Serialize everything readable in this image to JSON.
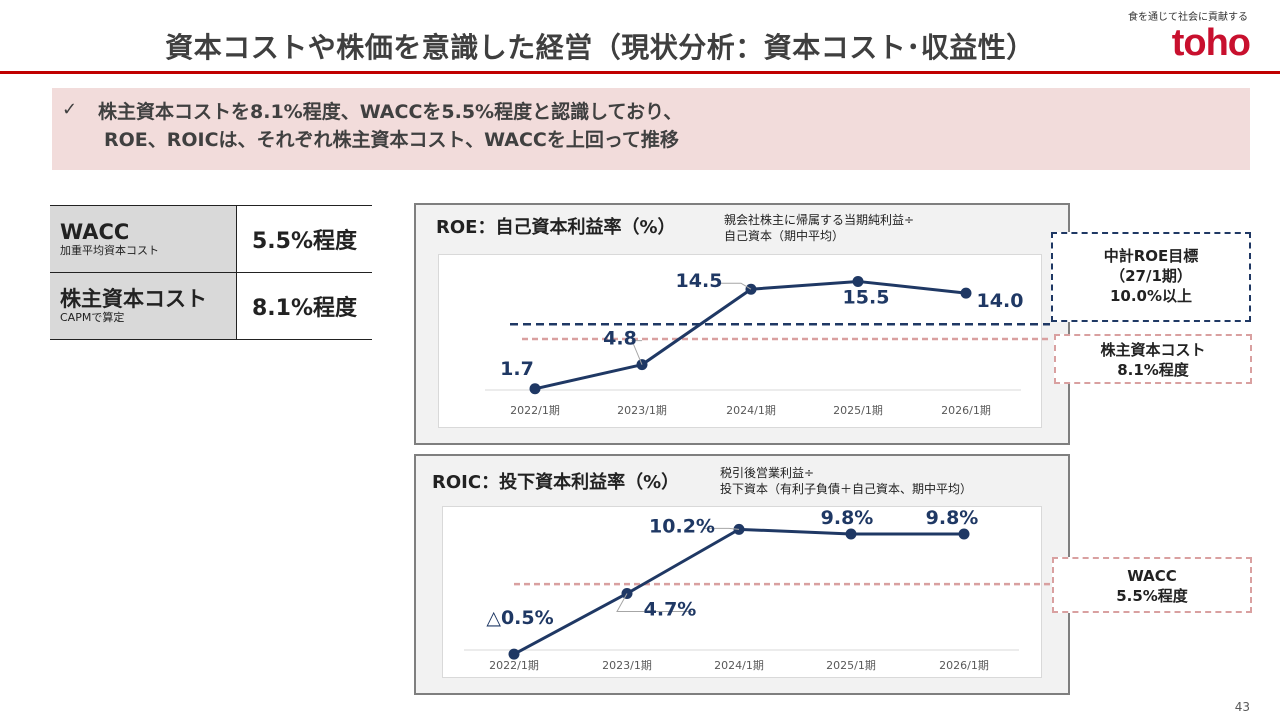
{
  "header": {
    "title": "資本コストや株価を意識した経営（現状分析：資本コスト･収益性）",
    "tagline": "食を通じて社会に貢献する",
    "logo": "toho"
  },
  "banner": {
    "check": "✓",
    "line1": "株主資本コストを8.1%程度、WACCを5.5%程度と認識しており、",
    "line2": "ROE、ROICは、それぞれ株主資本コスト、WACCを上回って推移"
  },
  "cost_table": {
    "rows": [
      {
        "label": "WACC",
        "sublabel": "加重平均資本コスト",
        "value": "5.5%程度"
      },
      {
        "label": "株主資本コスト",
        "sublabel": "CAPMで算定",
        "value": "8.1%程度"
      }
    ]
  },
  "roe_panel": {
    "title": "ROE：自己資本利益率（%）",
    "definition_line1": "親会社株主に帰属する当期純利益÷",
    "definition_line2": "自己資本（期中平均）",
    "callout_target": {
      "line1": "中計ROE目標",
      "line2": "（27/1期）",
      "line3": "10.0%以上"
    },
    "callout_cost": {
      "line1": "株主資本コスト",
      "line2": "8.1%程度"
    }
  },
  "roic_panel": {
    "title": "ROIC：投下資本利益率（%）",
    "definition_line1": "税引後営業利益÷",
    "definition_line2": "投下資本（有利子負債＋自己資本、期中平均）",
    "callout_wacc": {
      "line1": "WACC",
      "line2": "5.5%程度"
    }
  },
  "colors": {
    "accent": "#c00000",
    "series": "#1f3864",
    "banner": "#f2dcdb",
    "cost_line": "#d9a0a0"
  },
  "page_number": "43",
  "chart_data": [
    {
      "type": "line",
      "title": "ROE：自己資本利益率（%）",
      "categories": [
        "2022/1期",
        "2023/1期",
        "2024/1期",
        "2025/1期",
        "2026/1期"
      ],
      "values": [
        1.7,
        4.8,
        14.5,
        15.5,
        14.0
      ],
      "labels": [
        "1.7",
        "4.8",
        "14.5",
        "15.5",
        "14.0"
      ],
      "ylim": [
        0,
        18
      ],
      "reference_lines": [
        {
          "name": "中計ROE目標",
          "value": 10.0,
          "style": "navy-dashed"
        },
        {
          "name": "株主資本コスト",
          "value": 8.1,
          "style": "pink-dashed"
        }
      ]
    },
    {
      "type": "line",
      "title": "ROIC：投下資本利益率（%）",
      "categories": [
        "2022/1期",
        "2023/1期",
        "2024/1期",
        "2025/1期",
        "2026/1期"
      ],
      "values": [
        -0.5,
        4.7,
        10.2,
        9.8,
        9.8
      ],
      "labels": [
        "△0.5%",
        "4.7%",
        "10.2%",
        "9.8%",
        "9.8%"
      ],
      "ylim": [
        -1,
        11
      ],
      "reference_lines": [
        {
          "name": "WACC",
          "value": 5.5,
          "style": "pink-dashed"
        }
      ]
    }
  ]
}
